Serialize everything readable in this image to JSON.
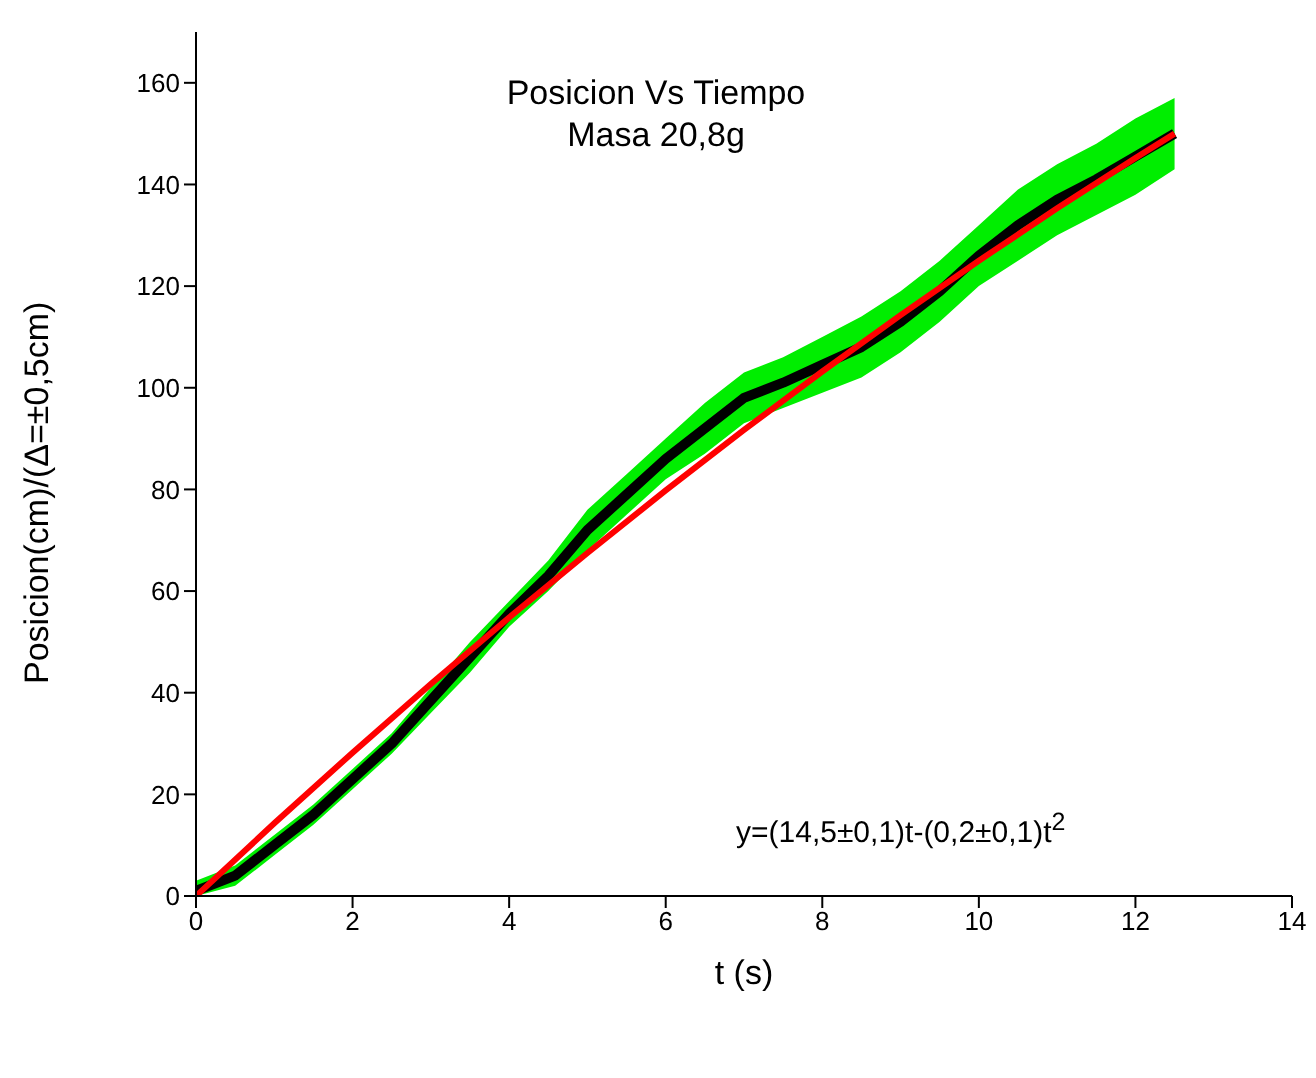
{
  "chart_data": {
    "type": "line",
    "title": "Posicion Vs Tiempo",
    "subtitle": "Masa 20,8g",
    "xlabel": "t (s)",
    "ylabel": "Posicion(cm)/(Δ=±0,5cm)",
    "annotations": [
      "y=(14,5±0,1)t-(0,2±0,1)t$^{2}$"
    ],
    "x": [
      0,
      0.5,
      1,
      1.5,
      2,
      2.5,
      3,
      3.5,
      4,
      4.5,
      5,
      5.5,
      6,
      6.5,
      7,
      7.5,
      8,
      8.5,
      9,
      9.5,
      10,
      10.5,
      11,
      11.5,
      12,
      12.5
    ],
    "series": [
      {
        "color": "#000000",
        "values": [
          1,
          4,
          10,
          16,
          23,
          30,
          38.5,
          47,
          55.5,
          63,
          72,
          79,
          86,
          92,
          98,
          101,
          104.5,
          108,
          113,
          119,
          126,
          132,
          137,
          141,
          145.5,
          150
        ],
        "lower": [
          0,
          2,
          8,
          14,
          21,
          28,
          36,
          44,
          53,
          60,
          68,
          75,
          82,
          87,
          93,
          96,
          99,
          102,
          107,
          113,
          120,
          125,
          130,
          134,
          138,
          143
        ],
        "upper": [
          3,
          6,
          12,
          18,
          25,
          32,
          41,
          50,
          58,
          66,
          76,
          83,
          90,
          97,
          103,
          106,
          110,
          114,
          119,
          125,
          132,
          139,
          144,
          148,
          153,
          157
        ]
      },
      {
        "type": "line",
        "color": "#ff0000",
        "x": [
          0,
          1,
          2,
          3,
          4,
          5,
          6,
          7,
          8,
          9,
          10,
          11,
          12,
          12.5
        ],
        "values": [
          0,
          14.3,
          28.2,
          41.7,
          54.8,
          67.5,
          79.8,
          91.7,
          103.2,
          114.3,
          125,
          135.3,
          145.2,
          150
        ]
      }
    ],
    "xlim": [
      0,
      14
    ],
    "xticks": [
      0,
      2,
      4,
      6,
      8,
      10,
      12,
      14
    ],
    "ylim": [
      0,
      170
    ],
    "yticks": [
      0,
      20,
      40,
      60,
      80,
      100,
      120,
      140,
      160
    ],
    "grid": false,
    "legend": false,
    "marker": "none",
    "line_style": "solid"
  }
}
